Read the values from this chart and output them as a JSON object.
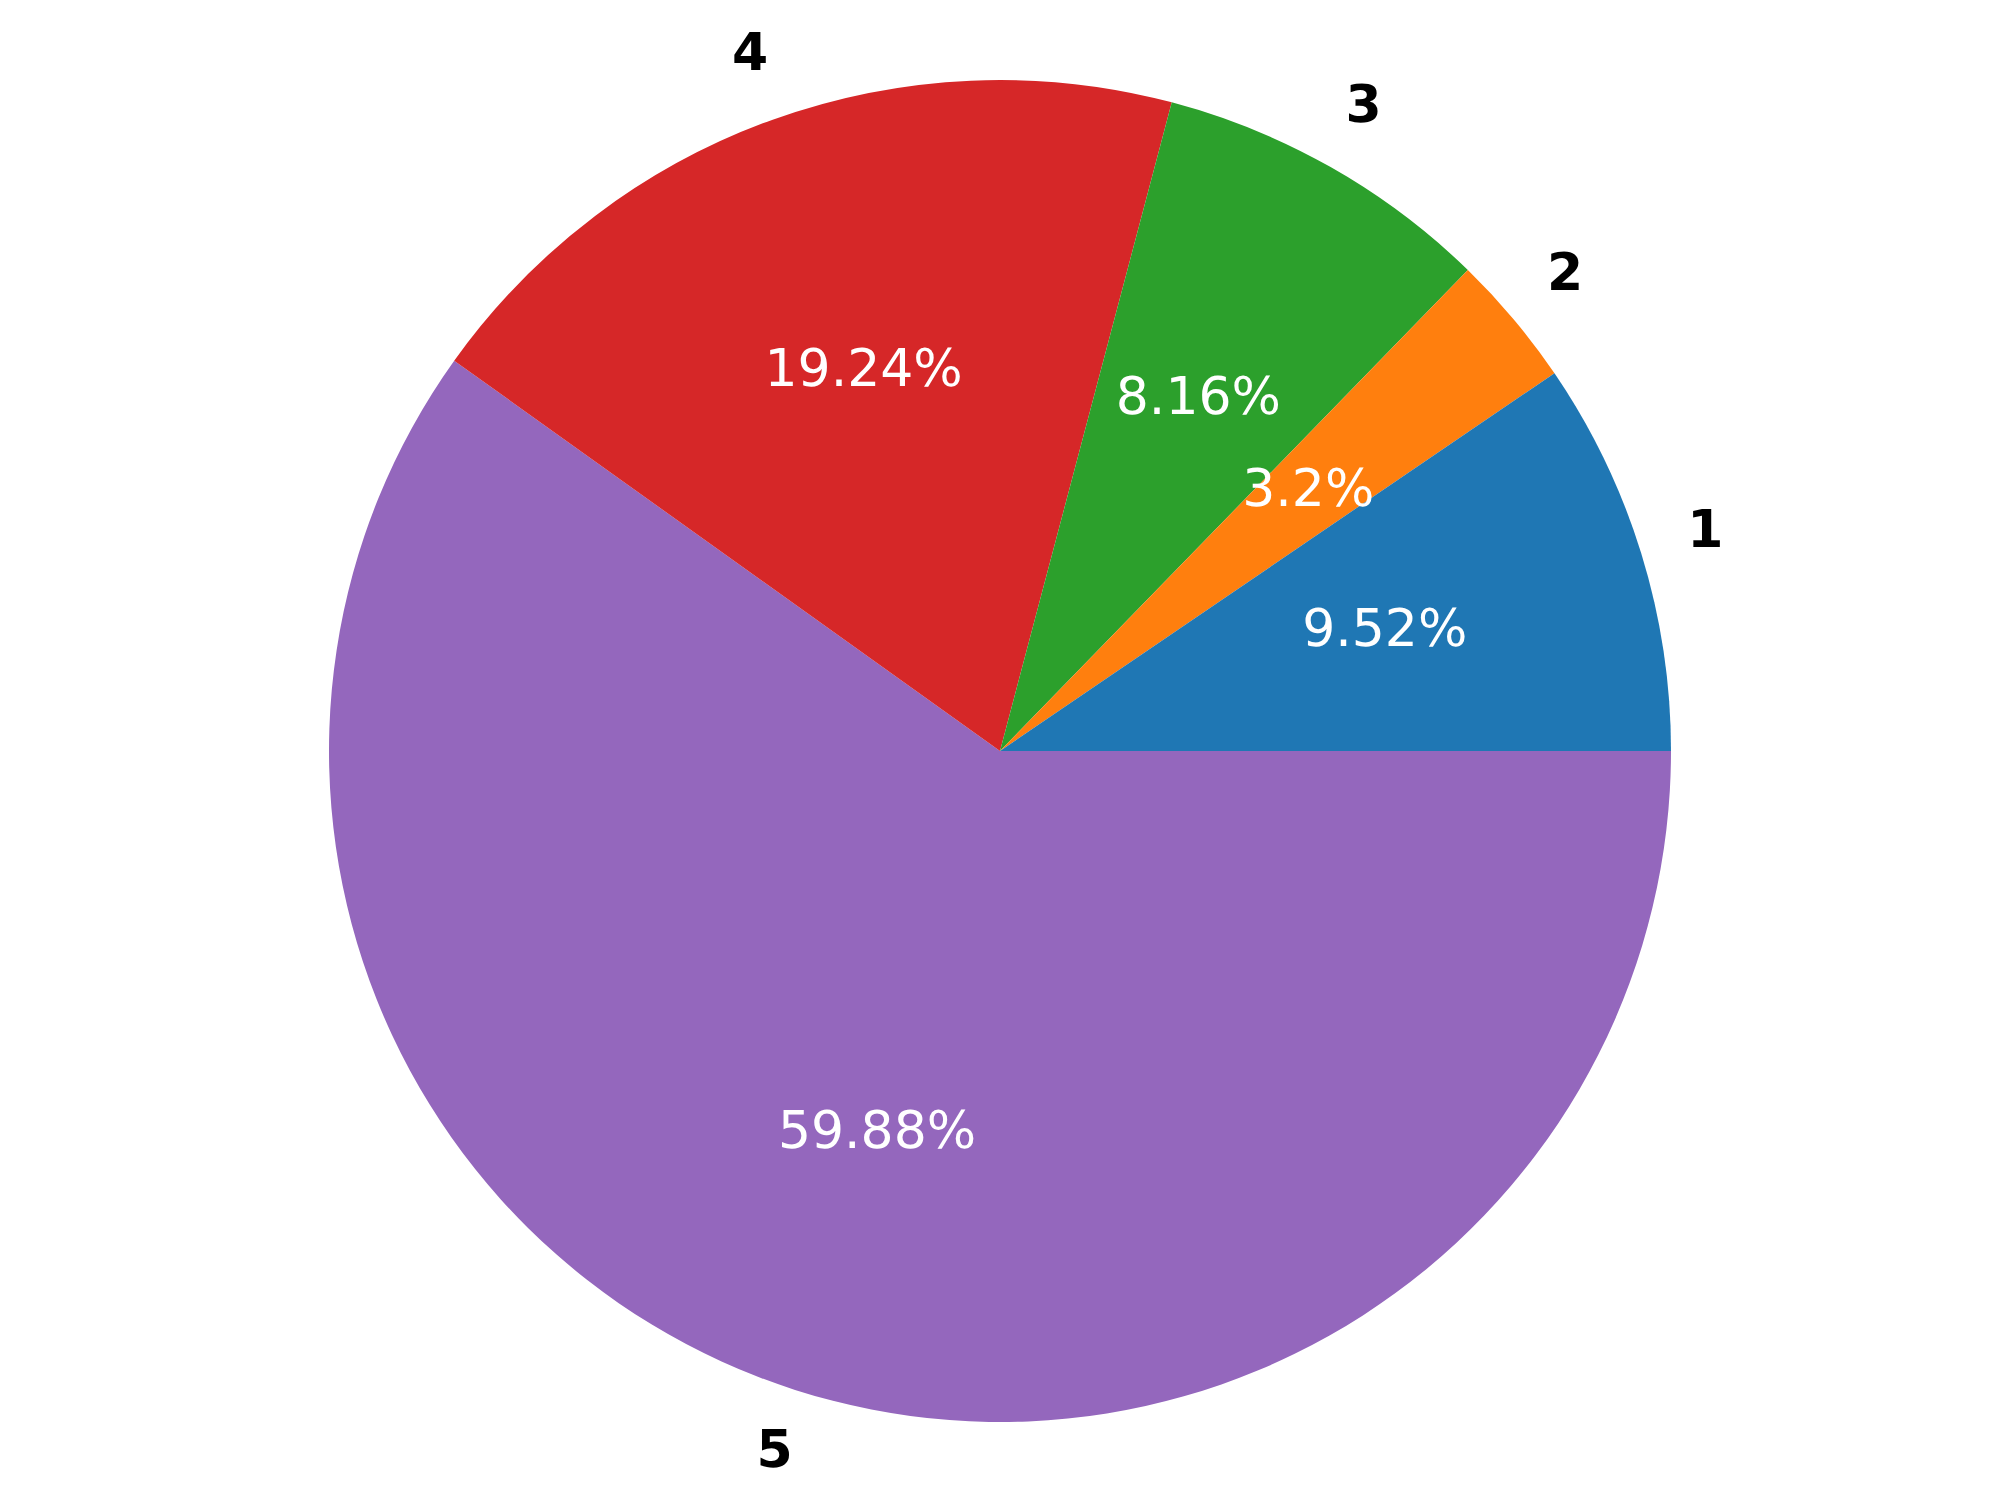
{
  "chart_data": {
    "type": "pie",
    "categories": [
      "1",
      "2",
      "3",
      "4",
      "5"
    ],
    "values": [
      9.52,
      3.2,
      8.16,
      19.24,
      59.88
    ],
    "colors": [
      "#1f77b4",
      "#ff7f0e",
      "#2ca02c",
      "#d62728",
      "#9467bd"
    ],
    "value_labels": [
      "9.52%",
      "3.2%",
      "8.16%",
      "19.24%",
      "59.88%"
    ],
    "legend": false
  }
}
